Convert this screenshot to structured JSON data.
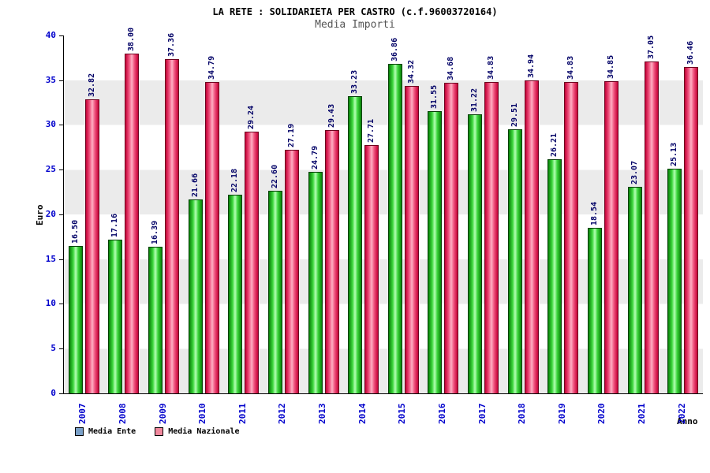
{
  "title": "LA RETE : SOLIDARIETA PER CASTRO (c.f.96003720164)",
  "subtitle": "Media Importi",
  "chart_data": {
    "type": "bar",
    "title": "LA RETE : SOLIDARIETA PER CASTRO (c.f.96003720164)",
    "subtitle": "Media Importi",
    "xlabel": "Anno",
    "ylabel": "Euro",
    "ylim": [
      0,
      40
    ],
    "ytick_step": 5,
    "grid_bands": true,
    "band_color": "#ebebeb",
    "axis_label_color": "#0000cc",
    "value_label_color": "#000066",
    "legend_position": "bottom-left",
    "categories": [
      "2007",
      "2008",
      "2009",
      "2010",
      "2011",
      "2012",
      "2013",
      "2014",
      "2015",
      "2016",
      "2017",
      "2018",
      "2019",
      "2020",
      "2021",
      "2022"
    ],
    "series": [
      {
        "name": "Media Ente",
        "gradient": [
          "#077f07",
          "#3cd63c",
          "#b4ffb4"
        ],
        "border": "#064006",
        "values": [
          16.5,
          17.16,
          16.39,
          21.66,
          22.18,
          22.6,
          24.79,
          33.23,
          36.86,
          31.55,
          31.22,
          29.51,
          26.21,
          18.54,
          23.07,
          25.13
        ]
      },
      {
        "name": "Media Nazionale",
        "gradient": [
          "#c40036",
          "#f05580",
          "#ffb0c4"
        ],
        "border": "#6d001e",
        "values": [
          32.82,
          38.0,
          37.36,
          34.79,
          29.24,
          27.19,
          29.43,
          27.71,
          34.32,
          34.68,
          34.83,
          34.94,
          34.83,
          34.85,
          37.05,
          36.46
        ]
      }
    ],
    "legend": [
      {
        "label": "Media Ente",
        "swatch": "#7aa0c8"
      },
      {
        "label": "Media Nazionale",
        "swatch": "#f2899e"
      }
    ]
  }
}
